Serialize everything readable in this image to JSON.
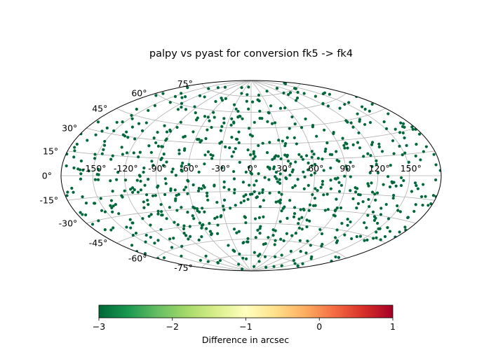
{
  "chart_data": {
    "type": "scatter",
    "projection": "aitoff",
    "title": "palpy vs pyast for conversion fk5 -> fk4",
    "x_tick_labels": [
      "-150°",
      "-120°",
      "-90°",
      "-60°",
      "-30°",
      "0°",
      "30°",
      "60°",
      "90°",
      "120°",
      "150°"
    ],
    "x_tick_values": [
      -150,
      -120,
      -90,
      -60,
      -30,
      0,
      30,
      60,
      90,
      120,
      150
    ],
    "y_tick_labels": [
      "-75°",
      "-60°",
      "-45°",
      "-30°",
      "-15°",
      "0°",
      "15°",
      "30°",
      "45°",
      "60°",
      "75°"
    ],
    "y_tick_values": [
      -75,
      -60,
      -45,
      -30,
      -15,
      0,
      15,
      30,
      45,
      60,
      75
    ],
    "xlim": [
      -180,
      180
    ],
    "ylim": [
      -90,
      90
    ],
    "grid": true,
    "colorbar": {
      "label": "Difference in arcsec",
      "colormap": "RdYlGn_r",
      "range": [
        -3,
        1
      ],
      "tick_labels": [
        "−3",
        "−2",
        "−1",
        "0",
        "1"
      ],
      "tick_values": [
        -3,
        -2,
        -1,
        0,
        1
      ],
      "orientation": "horizontal"
    },
    "point_value": -3,
    "point_color": "#00683a",
    "n_points": 800,
    "distribution": "uniform on the sphere"
  }
}
